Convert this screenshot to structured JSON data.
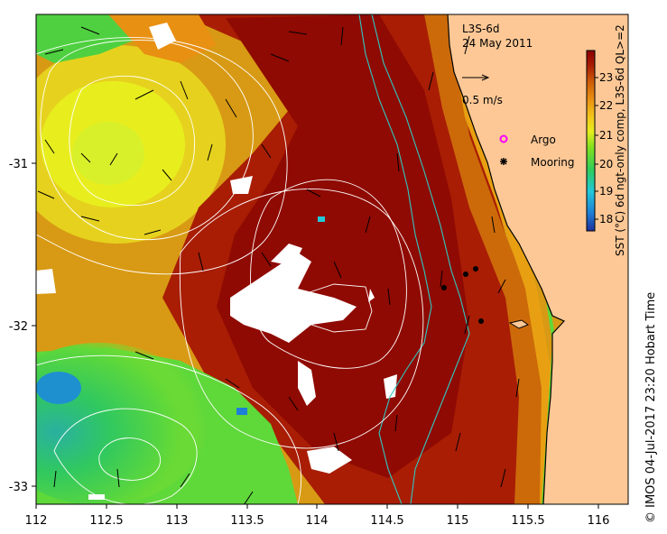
{
  "map": {
    "title": "L3S-6d",
    "date": "24 May 2011",
    "vector_scale_label": "0.5 m/s",
    "legend": [
      {
        "label": "Argo",
        "color": "#ff00ff",
        "marker": "ring-dot-icon"
      },
      {
        "label": "Mooring",
        "color": "#000000",
        "marker": "star-dot-icon"
      }
    ],
    "x_ticks": [
      "112",
      "112.5",
      "113",
      "113.5",
      "114",
      "114.5",
      "115",
      "115.5",
      "116"
    ],
    "y_ticks": [
      "-31",
      "-32",
      "-33"
    ],
    "colorbar": {
      "title": "SST (°C) 6d ngt-only comp, L3S-6d QL>=2",
      "ticks": [
        "18",
        "19",
        "20",
        "21",
        "22",
        "23"
      ],
      "colors": [
        "#1f2f9b",
        "#1e7fd6",
        "#22c8d8",
        "#30cc5a",
        "#7fe020",
        "#e6ee1e",
        "#f2c21a",
        "#e89012",
        "#cc5a08",
        "#a81d04",
        "#8a0000"
      ]
    },
    "credit": "© IMOS 04-Jul-2017 23:20 Hobart Time"
  }
}
